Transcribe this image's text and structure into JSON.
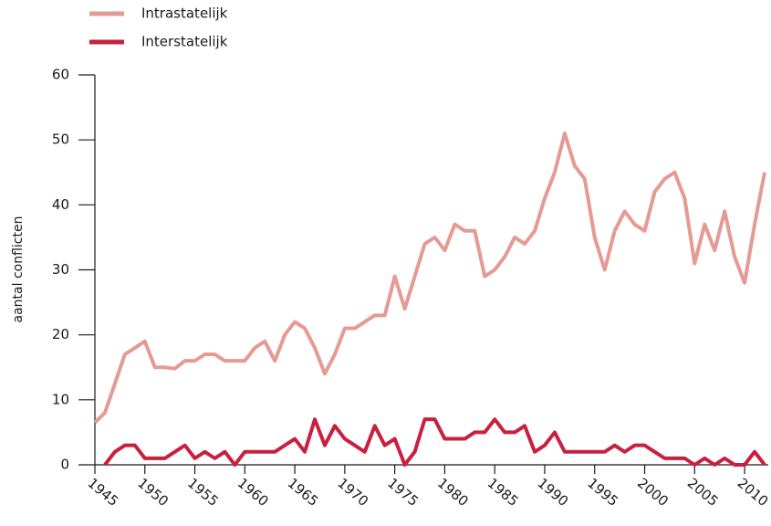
{
  "chart_data": {
    "type": "line",
    "y_label": "aantal conflicten",
    "x": [
      1945,
      1946,
      1947,
      1948,
      1949,
      1950,
      1951,
      1952,
      1953,
      1954,
      1955,
      1956,
      1957,
      1958,
      1959,
      1960,
      1961,
      1962,
      1963,
      1964,
      1965,
      1966,
      1967,
      1968,
      1969,
      1970,
      1971,
      1972,
      1973,
      1974,
      1975,
      1976,
      1977,
      1978,
      1979,
      1980,
      1981,
      1982,
      1983,
      1984,
      1985,
      1986,
      1987,
      1988,
      1989,
      1990,
      1991,
      1992,
      1993,
      1994,
      1995,
      1996,
      1997,
      1998,
      1999,
      2000,
      2001,
      2002,
      2003,
      2004,
      2005,
      2006,
      2007,
      2008,
      2009,
      2010,
      2011,
      2012
    ],
    "series": [
      {
        "name": "Intrastatelijk",
        "color": "#e59a94",
        "values": [
          6.5,
          8,
          12.5,
          17,
          18,
          19,
          15,
          15,
          14.8,
          16,
          16,
          17,
          17,
          16,
          16,
          16,
          18,
          19,
          16,
          20,
          22,
          21,
          18,
          14,
          17,
          21,
          21,
          22,
          23,
          23,
          29,
          24,
          29,
          34,
          35,
          33,
          37,
          36,
          36,
          29,
          30,
          32,
          35,
          34,
          36,
          41,
          45,
          51,
          46,
          44,
          35,
          30,
          36,
          39,
          37,
          36,
          42,
          44,
          45,
          41,
          31,
          37,
          33,
          39,
          32,
          28,
          37,
          45
        ]
      },
      {
        "name": "Interstatelijk",
        "color": "#c8203f",
        "values": [
          null,
          0,
          2,
          3,
          3,
          1,
          1,
          1,
          2,
          3,
          1,
          2,
          1,
          2,
          0,
          2,
          2,
          2,
          2,
          3,
          4,
          2,
          7,
          3,
          6,
          4,
          3,
          2,
          6,
          3,
          4,
          0,
          2,
          7,
          7,
          4,
          4,
          4,
          5,
          5,
          7,
          5,
          5,
          6,
          2,
          3,
          5,
          2,
          2,
          2,
          2,
          2,
          3,
          2,
          3,
          3,
          2,
          1,
          1,
          1,
          0,
          1,
          0,
          1,
          0,
          0,
          2,
          0
        ]
      }
    ],
    "xlim": [
      1945,
      2012
    ],
    "xticks": [
      1945,
      1950,
      1955,
      1960,
      1965,
      1970,
      1975,
      1980,
      1985,
      1990,
      1995,
      2000,
      2005,
      2010
    ],
    "ylim": [
      0,
      60
    ],
    "yticks": [
      0,
      10,
      20,
      30,
      40,
      50,
      60
    ],
    "legend": "top-left"
  }
}
